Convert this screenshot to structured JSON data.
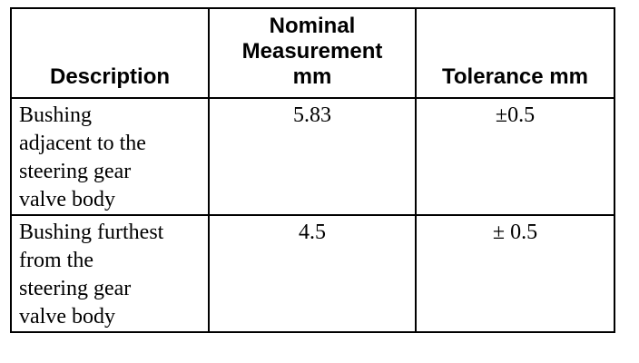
{
  "table": {
    "headers": {
      "description": "Description",
      "nominal": [
        "Nominal",
        "Measurement",
        "mm"
      ],
      "tolerance": "Tolerance mm"
    },
    "rows": [
      {
        "description": [
          "Bushing",
          "adjacent to the",
          "steering gear",
          "valve body"
        ],
        "nominal": "5.83",
        "tolerance": "±0.5"
      },
      {
        "description": [
          "Bushing furthest",
          "from the",
          "steering gear",
          "valve body"
        ],
        "nominal": "4.5",
        "tolerance": "± 0.5"
      }
    ]
  }
}
